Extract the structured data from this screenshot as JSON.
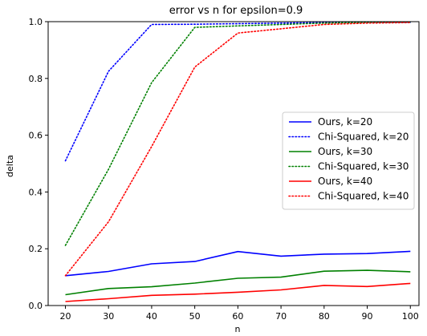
{
  "chart_data": {
    "type": "line",
    "title": "error vs n for epsilon=0.9",
    "xlabel": "n",
    "ylabel": "delta",
    "x": [
      20,
      30,
      40,
      50,
      60,
      70,
      80,
      90,
      100
    ],
    "xticks": [
      "20",
      "30",
      "40",
      "50",
      "60",
      "70",
      "80",
      "90",
      "100"
    ],
    "yticks": [
      "0.0",
      "0.2",
      "0.4",
      "0.6",
      "0.8",
      "1.0"
    ],
    "xlim": [
      16,
      102
    ],
    "ylim": [
      0.0,
      1.0
    ],
    "grid": false,
    "legend_position": "center-right",
    "series": [
      {
        "name": "Ours, k=20",
        "color": "#0000ff",
        "style": "solid",
        "values": [
          0.105,
          0.12,
          0.147,
          0.155,
          0.19,
          0.174,
          0.181,
          0.183,
          0.191
        ]
      },
      {
        "name": "Chi-Squared, k=20",
        "color": "#0000ff",
        "style": "dotted",
        "values": [
          0.51,
          0.825,
          0.99,
          0.991,
          0.993,
          0.995,
          0.997,
          0.998,
          0.998
        ]
      },
      {
        "name": "Ours, k=30",
        "color": "#008000",
        "style": "solid",
        "values": [
          0.038,
          0.06,
          0.066,
          0.079,
          0.096,
          0.1,
          0.121,
          0.124,
          0.119
        ]
      },
      {
        "name": "Chi-Squared, k=30",
        "color": "#008000",
        "style": "dotted",
        "values": [
          0.212,
          0.48,
          0.785,
          0.98,
          0.985,
          0.99,
          0.995,
          0.998,
          0.999
        ]
      },
      {
        "name": "Ours, k=40",
        "color": "#ff0000",
        "style": "solid",
        "values": [
          0.014,
          0.024,
          0.036,
          0.04,
          0.047,
          0.055,
          0.071,
          0.067,
          0.078
        ]
      },
      {
        "name": "Chi-Squared, k=40",
        "color": "#ff0000",
        "style": "dotted",
        "values": [
          0.105,
          0.295,
          0.56,
          0.84,
          0.96,
          0.975,
          0.99,
          0.995,
          0.997
        ]
      }
    ]
  }
}
